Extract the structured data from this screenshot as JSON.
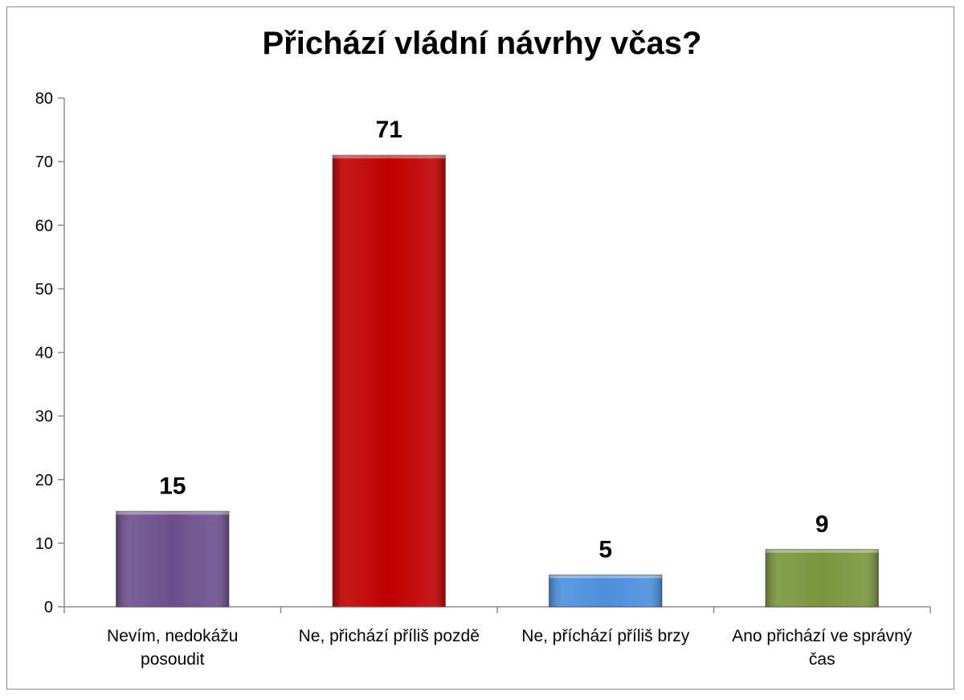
{
  "chart_data": {
    "type": "bar",
    "title": "Přichází vládní návrhy včas?",
    "categories": [
      [
        "Nevím, nedokážu",
        "posoudit"
      ],
      [
        "Ne, přichází příliš pozdě"
      ],
      [
        "Ne, příchází příliš brzy"
      ],
      [
        "Ano přichází ve správný",
        "čas"
      ]
    ],
    "values": [
      15,
      71,
      5,
      9
    ],
    "data_labels": [
      "15",
      "71",
      "5",
      "9"
    ],
    "colors": [
      "#6b4f8c",
      "#c00000",
      "#4a8fdc",
      "#77963c"
    ],
    "ylim": [
      0,
      80
    ],
    "yticks": [
      "0",
      "10",
      "20",
      "30",
      "40",
      "50",
      "60",
      "70",
      "80"
    ],
    "grid": false,
    "legend": "none"
  }
}
